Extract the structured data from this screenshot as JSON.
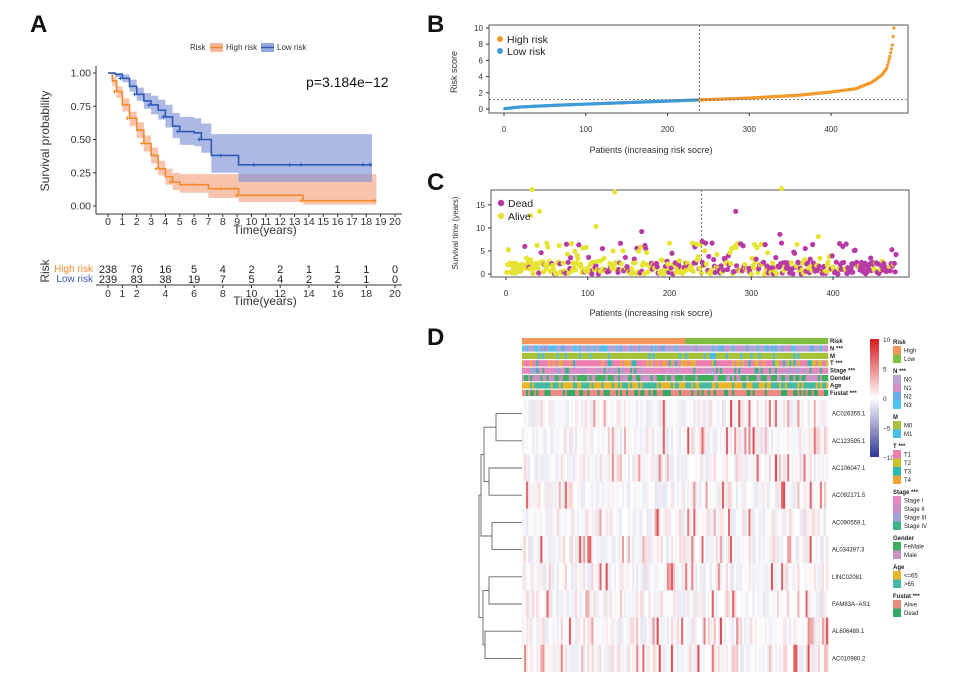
{
  "panels": {
    "A": {
      "label": "A"
    },
    "B": {
      "label": "B"
    },
    "C": {
      "label": "C"
    },
    "D": {
      "label": "D"
    }
  },
  "chart_data": [
    {
      "id": "A",
      "type": "line",
      "subtype": "kaplan-meier",
      "legend_title": "Risk",
      "legend_position": "top",
      "xlabel": "Time(years)",
      "ylabel": "Survival probability",
      "xlim": [
        0,
        20
      ],
      "ylim": [
        0,
        1
      ],
      "xticks": [
        0,
        1,
        2,
        3,
        4,
        5,
        6,
        7,
        8,
        9,
        10,
        11,
        12,
        13,
        14,
        15,
        16,
        17,
        18,
        19,
        20
      ],
      "yticks": [
        "0.00",
        "0.25",
        "0.50",
        "0.75",
        "1.00"
      ],
      "annotation": "p=3.184e−12",
      "series": [
        {
          "name": "High risk",
          "color": "#f28a2e",
          "fill": "#f4a582",
          "x": [
            0,
            0.3,
            0.6,
            1,
            1.5,
            2,
            2.5,
            3,
            3.5,
            4,
            4.5,
            5,
            6,
            7,
            8,
            9.1,
            13.6,
            18.7
          ],
          "y": [
            1,
            0.94,
            0.86,
            0.76,
            0.66,
            0.57,
            0.47,
            0.38,
            0.28,
            0.22,
            0.18,
            0.16,
            0.16,
            0.13,
            0.13,
            0.08,
            0.04,
            0.04
          ],
          "lower": [
            1,
            0.9,
            0.81,
            0.71,
            0.6,
            0.51,
            0.41,
            0.32,
            0.23,
            0.16,
            0.12,
            0.1,
            0.1,
            0.06,
            0.06,
            0.03,
            0.01,
            0.01
          ],
          "upper": [
            1,
            0.97,
            0.9,
            0.81,
            0.71,
            0.63,
            0.53,
            0.44,
            0.34,
            0.28,
            0.25,
            0.24,
            0.24,
            0.24,
            0.24,
            0.24,
            0.24,
            0.24
          ]
        },
        {
          "name": "Low risk",
          "color": "#2b5bb5",
          "fill": "#7f93d6",
          "x": [
            0,
            0.5,
            1,
            1.5,
            2,
            2.5,
            3,
            3.5,
            4,
            4.5,
            5,
            6,
            6.5,
            7.2,
            8,
            9.1,
            10.3,
            12.8,
            13.6,
            17.9,
            18.4
          ],
          "y": [
            1,
            0.99,
            0.96,
            0.9,
            0.84,
            0.79,
            0.76,
            0.72,
            0.67,
            0.6,
            0.56,
            0.55,
            0.5,
            0.38,
            0.38,
            0.31,
            0.31,
            0.31,
            0.31,
            0.31,
            0.31
          ],
          "lower": [
            1,
            0.97,
            0.93,
            0.86,
            0.79,
            0.73,
            0.69,
            0.65,
            0.59,
            0.51,
            0.46,
            0.45,
            0.4,
            0.25,
            0.25,
            0.18,
            0.18,
            0.18,
            0.18,
            0.18,
            0.18
          ],
          "upper": [
            1,
            1,
            0.99,
            0.95,
            0.89,
            0.85,
            0.83,
            0.8,
            0.76,
            0.7,
            0.67,
            0.66,
            0.62,
            0.54,
            0.54,
            0.54,
            0.54,
            0.54,
            0.54,
            0.54,
            0.54
          ]
        }
      ],
      "risk_table": {
        "title": "Risk",
        "xlabel": "Time(years)",
        "xticks": [
          0,
          1,
          2,
          4,
          6,
          8,
          10,
          12,
          14,
          16,
          18,
          20
        ],
        "times": [
          0,
          2,
          4,
          6,
          8,
          10,
          12,
          14,
          16,
          18,
          20
        ],
        "rows": [
          {
            "name": "High risk",
            "color": "#f28a2e",
            "values": [
              238,
              76,
              16,
              5,
              4,
              2,
              2,
              1,
              1,
              1,
              0
            ]
          },
          {
            "name": "Low risk",
            "color": "#3a55b8",
            "values": [
              239,
              83,
              38,
              19,
              7,
              5,
              4,
              2,
              2,
              1,
              0
            ]
          }
        ]
      }
    },
    {
      "id": "B",
      "type": "scatter",
      "xlabel": "Patients (increasing risk socre)",
      "ylabel": "Risk score",
      "xlim": [
        0,
        477
      ],
      "ylim": [
        0,
        10
      ],
      "xticks": [
        0,
        100,
        200,
        300,
        400
      ],
      "yticks": [
        0,
        2,
        4,
        6,
        8,
        10
      ],
      "cutoff_patient": 239,
      "cutoff_score": 1.15,
      "legend_position": "top-left",
      "series": [
        {
          "name": "High risk",
          "color": "#f39a2c",
          "range": [
            239,
            477
          ]
        },
        {
          "name": "Low risk",
          "color": "#3e9ad9",
          "range": [
            1,
            238
          ]
        }
      ],
      "score_curve_keypoints": {
        "x": [
          1,
          20,
          60,
          120,
          180,
          238,
          300,
          360,
          400,
          430,
          450,
          462,
          468,
          472,
          475,
          477
        ],
        "y": [
          0.05,
          0.25,
          0.45,
          0.68,
          0.9,
          1.12,
          1.35,
          1.7,
          2.1,
          2.5,
          3.3,
          4.2,
          5.0,
          6.5,
          7.9,
          10.0
        ]
      }
    },
    {
      "id": "C",
      "type": "scatter",
      "xlabel": "Patients (increasing risk socre)",
      "ylabel": "Survival time (years)",
      "xlim": [
        0,
        477
      ],
      "ylim": [
        0,
        18
      ],
      "xticks": [
        0,
        100,
        200,
        300,
        400
      ],
      "yticks": [
        0,
        5,
        10,
        15
      ],
      "cutoff_patient": 239,
      "legend_position": "top-left",
      "series": [
        {
          "name": "Dead",
          "color": "#b83aa6"
        },
        {
          "name": "Alive",
          "color": "#e6e332"
        }
      ],
      "notable_points": [
        {
          "x": 32,
          "y": 18.3,
          "status": "Alive"
        },
        {
          "x": 133,
          "y": 17.8,
          "status": "Alive"
        },
        {
          "x": 337,
          "y": 18.5,
          "status": "Alive"
        },
        {
          "x": 30,
          "y": 12.7,
          "status": "Alive"
        },
        {
          "x": 41,
          "y": 13.6,
          "status": "Alive"
        },
        {
          "x": 281,
          "y": 13.6,
          "status": "Dead"
        },
        {
          "x": 110,
          "y": 10.3,
          "status": "Alive"
        },
        {
          "x": 166,
          "y": 9.2,
          "status": "Dead"
        },
        {
          "x": 335,
          "y": 8.6,
          "status": "Dead"
        },
        {
          "x": 382,
          "y": 8.1,
          "status": "Alive"
        },
        {
          "x": 416,
          "y": 6.5,
          "status": "Dead"
        },
        {
          "x": 240,
          "y": 7.1,
          "status": "Dead"
        }
      ]
    },
    {
      "id": "D",
      "type": "heatmap",
      "color_scale": {
        "min": -10,
        "max": 10,
        "ticks": [
          10,
          5,
          0,
          -5,
          -10
        ],
        "low": "#313695",
        "mid": "#ffffff",
        "high": "#d7191c"
      },
      "genes": [
        "AC026355.1",
        "AC123595.1",
        "AC106047.1",
        "AC092171.5",
        "AC090559.1",
        "AL034397.3",
        "LINC02081",
        "FAM83A−AS1",
        "AL606489.1",
        "AC010980.2"
      ],
      "annotation_tracks": [
        "Risk",
        "N ***",
        "M",
        "T ***",
        "Stage ***",
        "Gender",
        "Age",
        "Fustat ***"
      ],
      "n_patients": 477,
      "risk_split": 0.53,
      "legend": [
        {
          "title": "Risk",
          "items": [
            {
              "label": "High",
              "color": "#f4955d"
            },
            {
              "label": "Low",
              "color": "#7fbe3f"
            }
          ]
        },
        {
          "title": "N ***",
          "items": [
            {
              "label": "N0",
              "color": "#b7a2d6"
            },
            {
              "label": "N1",
              "color": "#d58fc4"
            },
            {
              "label": "N2",
              "color": "#6aaee8"
            },
            {
              "label": "N3",
              "color": "#4dc6ee"
            }
          ]
        },
        {
          "title": "M",
          "items": [
            {
              "label": "M0",
              "color": "#a8c13a"
            },
            {
              "label": "M1",
              "color": "#47bde8"
            }
          ]
        },
        {
          "title": "T ***",
          "items": [
            {
              "label": "T1",
              "color": "#ec7fb0"
            },
            {
              "label": "T2",
              "color": "#c8c22f"
            },
            {
              "label": "T3",
              "color": "#2db9b3"
            },
            {
              "label": "T4",
              "color": "#f1a43a"
            }
          ]
        },
        {
          "title": "Stage ***",
          "items": [
            {
              "label": "Stage I",
              "color": "#e58ac1"
            },
            {
              "label": "Stage II",
              "color": "#cc8fc7"
            },
            {
              "label": "Stage III",
              "color": "#9fa4d8"
            },
            {
              "label": "Stage IV",
              "color": "#3cb48a"
            }
          ]
        },
        {
          "title": "Gender",
          "items": [
            {
              "label": "FeMale",
              "color": "#3fae5d"
            },
            {
              "label": "Male",
              "color": "#cc8fc7"
            }
          ]
        },
        {
          "title": "Age",
          "items": [
            {
              "label": "<=65",
              "color": "#e9b426"
            },
            {
              "label": ">65",
              "color": "#44b9a4"
            }
          ]
        },
        {
          "title": "Fustat ***",
          "items": [
            {
              "label": "Alive",
              "color": "#ee8a84"
            },
            {
              "label": "Dead",
              "color": "#35a867"
            }
          ]
        }
      ]
    }
  ]
}
